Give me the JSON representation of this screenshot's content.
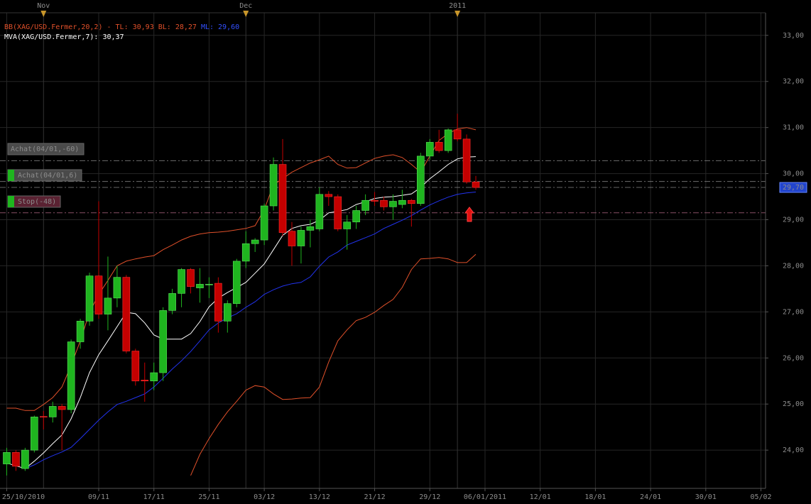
{
  "chart_data": {
    "type": "candlestick",
    "legend": [
      [
        {
          "text": "BB(XAG/USD.Fermer,20,2) - TL: 30,93 BL: 28,27 ",
          "color": "#e0502a"
        },
        {
          "text": "ML: 29,60",
          "color": "#3350ff"
        }
      ],
      [
        {
          "text": "MVA(XAG/USD.Fermer,7): 30,37",
          "color": "#ffffff"
        }
      ]
    ],
    "categories": [
      "25/10/2010",
      null,
      null,
      null,
      null,
      null,
      null,
      null,
      null,
      null,
      "09/11",
      null,
      null,
      null,
      null,
      null,
      "17/11",
      null,
      null,
      null,
      null,
      null,
      "25/11",
      null,
      null,
      null,
      null,
      null,
      "03/12",
      null,
      null,
      null,
      null,
      null,
      "13/12",
      null,
      null,
      null,
      null,
      null,
      "21/12",
      null,
      null,
      null,
      null,
      null,
      "29/12",
      null,
      null,
      null,
      null,
      null,
      "06/01/2011",
      null,
      null,
      null,
      null,
      null,
      "12/01",
      null,
      null,
      null,
      null,
      null,
      "18/01",
      null,
      null,
      null,
      null,
      null,
      "24/01",
      null,
      null,
      null,
      null,
      null,
      "30/01",
      null,
      null,
      null,
      null,
      null,
      "05/02"
    ],
    "top_ticks": [
      {
        "value": 4,
        "label": "Nov"
      },
      {
        "value": 26,
        "label": "Dec"
      },
      {
        "value": 49,
        "label": "2011"
      }
    ],
    "open": [
      23.7,
      23.95,
      23.6,
      24.0,
      24.73,
      24.72,
      24.95,
      24.88,
      26.35,
      26.8,
      27.78,
      26.95,
      27.3,
      27.75,
      26.15,
      25.52,
      25.5,
      25.68,
      27.03,
      27.4,
      27.92,
      27.52,
      27.6,
      27.62,
      26.8,
      27.18,
      28.1,
      28.48,
      28.56,
      29.3,
      30.2,
      28.75,
      28.43,
      28.77,
      28.8,
      29.55,
      29.5,
      28.8,
      28.95,
      29.2,
      29.42,
      29.42,
      29.28,
      29.33,
      29.42,
      29.35,
      30.38,
      30.68,
      30.5,
      30.95,
      30.75,
      29.82,
      null,
      null,
      null,
      null,
      null,
      null,
      null,
      null,
      null,
      null,
      null,
      null,
      null,
      null,
      null,
      null,
      null,
      null,
      null,
      null,
      null,
      null,
      null,
      null,
      null,
      null,
      null,
      null,
      null,
      null,
      null
    ],
    "high": [
      24.05,
      24.0,
      24.05,
      24.75,
      24.85,
      25.05,
      25.0,
      26.4,
      26.85,
      27.85,
      29.4,
      28.2,
      28.0,
      27.8,
      26.2,
      25.9,
      25.9,
      27.1,
      27.5,
      27.95,
      27.95,
      27.95,
      27.75,
      27.75,
      27.25,
      28.15,
      28.75,
      28.6,
      29.35,
      30.35,
      30.75,
      28.95,
      28.85,
      29.0,
      29.7,
      29.62,
      29.55,
      29.1,
      29.3,
      29.55,
      29.6,
      29.5,
      29.55,
      29.65,
      29.45,
      30.45,
      30.75,
      30.95,
      30.98,
      31.3,
      30.85,
      29.95,
      null,
      null,
      null,
      null,
      null,
      null,
      null,
      null,
      null,
      null,
      null,
      null,
      null,
      null,
      null,
      null,
      null,
      null,
      null,
      null,
      null,
      null,
      null,
      null,
      null,
      null,
      null,
      null,
      null,
      null,
      null
    ],
    "low": [
      23.45,
      23.55,
      23.55,
      23.95,
      24.45,
      24.6,
      24.0,
      24.8,
      26.2,
      26.7,
      26.85,
      26.6,
      27.1,
      26.1,
      25.4,
      25.05,
      25.3,
      25.5,
      26.95,
      27.1,
      27.4,
      27.2,
      27.3,
      26.55,
      26.55,
      27.1,
      27.95,
      28.3,
      28.45,
      29.2,
      28.65,
      28.0,
      28.05,
      28.4,
      28.75,
      29.3,
      28.75,
      28.35,
      28.8,
      29.1,
      29.3,
      29.2,
      29.0,
      29.25,
      28.85,
      29.3,
      30.3,
      30.45,
      30.45,
      30.7,
      29.78,
      29.65,
      null,
      null,
      null,
      null,
      null,
      null,
      null,
      null,
      null,
      null,
      null,
      null,
      null,
      null,
      null,
      null,
      null,
      null,
      null,
      null,
      null,
      null,
      null,
      null,
      null,
      null,
      null,
      null,
      null,
      null,
      null
    ],
    "close": [
      23.95,
      23.65,
      24.0,
      24.72,
      24.72,
      24.95,
      24.88,
      26.35,
      26.8,
      27.78,
      26.95,
      27.3,
      27.75,
      26.15,
      25.5,
      25.5,
      25.68,
      27.03,
      27.4,
      27.92,
      27.55,
      27.6,
      27.6,
      26.8,
      27.18,
      28.1,
      28.48,
      28.56,
      29.3,
      30.2,
      28.72,
      28.43,
      28.77,
      28.85,
      29.55,
      29.5,
      28.8,
      28.95,
      29.2,
      29.42,
      29.4,
      29.28,
      29.4,
      29.42,
      29.35,
      30.38,
      30.68,
      30.5,
      30.95,
      30.75,
      29.82,
      29.7,
      null,
      null,
      null,
      null,
      null,
      null,
      null,
      null,
      null,
      null,
      null,
      null,
      null,
      null,
      null,
      null,
      null,
      null,
      null,
      null,
      null,
      null,
      null,
      null,
      null,
      null,
      null,
      null,
      null,
      null,
      null
    ],
    "up_color": "#1fb51f",
    "down_color": "#c40000",
    "indicators": [
      {
        "color": "#e0502a",
        "values": [
          24.91,
          24.91,
          24.86,
          24.86,
          24.99,
          25.14,
          25.37,
          25.84,
          26.37,
          26.99,
          27.38,
          27.68,
          28.0,
          28.1,
          28.15,
          28.19,
          28.22,
          28.35,
          28.45,
          28.56,
          28.64,
          28.69,
          28.72,
          28.73,
          28.75,
          28.78,
          28.81,
          28.87,
          29.22,
          29.76,
          29.89,
          30.03,
          30.13,
          30.23,
          30.3,
          30.38,
          30.2,
          30.12,
          30.13,
          30.23,
          30.33,
          30.38,
          30.41,
          30.35,
          30.2,
          30.03,
          30.38,
          30.72,
          30.87,
          30.97,
          31.0,
          30.95,
          null,
          null,
          null,
          null,
          null,
          null,
          null,
          null,
          null,
          null,
          null,
          null,
          null,
          null,
          null,
          null,
          null,
          null,
          null,
          null,
          null,
          null,
          null,
          null,
          null,
          null,
          null,
          null,
          null,
          null,
          null
        ]
      },
      {
        "color": "#e0502a",
        "values": [
          null,
          null,
          null,
          null,
          null,
          null,
          null,
          null,
          null,
          null,
          null,
          null,
          null,
          null,
          null,
          null,
          null,
          null,
          null,
          null,
          23.45,
          23.91,
          24.25,
          24.56,
          24.83,
          25.06,
          25.3,
          25.4,
          25.37,
          25.22,
          25.1,
          25.11,
          25.13,
          25.14,
          25.37,
          25.91,
          26.37,
          26.61,
          26.81,
          26.88,
          26.99,
          27.14,
          27.27,
          27.53,
          27.92,
          28.15,
          28.16,
          28.18,
          28.15,
          28.07,
          28.07,
          28.25,
          null,
          null,
          null,
          null,
          null,
          null,
          null,
          null,
          null,
          null,
          null,
          null,
          null,
          null,
          null,
          null,
          null,
          null,
          null,
          null,
          null,
          null,
          null,
          null,
          null,
          null,
          null,
          null,
          null,
          null,
          null
        ]
      },
      {
        "color": "#2233ee",
        "values": [
          null,
          null,
          23.6,
          23.68,
          23.79,
          23.88,
          23.96,
          24.06,
          24.25,
          24.45,
          24.65,
          24.83,
          24.99,
          25.06,
          25.14,
          25.22,
          25.37,
          25.56,
          25.76,
          25.94,
          26.14,
          26.37,
          26.61,
          26.76,
          26.87,
          26.96,
          27.1,
          27.22,
          27.38,
          27.48,
          27.56,
          27.61,
          27.64,
          27.76,
          27.99,
          28.19,
          28.3,
          28.45,
          28.53,
          28.61,
          28.69,
          28.81,
          28.9,
          28.99,
          29.09,
          29.21,
          29.32,
          29.41,
          29.49,
          29.55,
          29.58,
          29.6,
          null,
          null,
          null,
          null,
          null,
          null,
          null,
          null,
          null,
          null,
          null,
          null,
          null,
          null,
          null,
          null,
          null,
          null,
          null,
          null,
          null,
          null,
          null,
          null,
          null,
          null,
          null,
          null,
          null,
          null,
          null
        ]
      },
      {
        "color": "#ffffff",
        "values": [
          23.72,
          23.66,
          23.6,
          23.76,
          23.94,
          24.14,
          24.33,
          24.68,
          25.14,
          25.68,
          26.07,
          26.37,
          26.68,
          26.99,
          26.96,
          26.76,
          26.5,
          26.41,
          26.41,
          26.41,
          26.53,
          26.79,
          27.11,
          27.3,
          27.42,
          27.53,
          27.64,
          27.84,
          28.04,
          28.35,
          28.66,
          28.81,
          28.87,
          28.9,
          28.99,
          29.15,
          29.18,
          29.22,
          29.33,
          29.39,
          29.46,
          29.49,
          29.5,
          29.53,
          29.56,
          29.7,
          29.89,
          30.04,
          30.2,
          30.32,
          30.36,
          30.37,
          null,
          null,
          null,
          null,
          null,
          null,
          null,
          null,
          null,
          null,
          null,
          null,
          null,
          null,
          null,
          null,
          null,
          null,
          null,
          null,
          null,
          null,
          null,
          null,
          null,
          null,
          null,
          null,
          null,
          null,
          null
        ]
      }
    ],
    "levels": [
      {
        "label": "Achat(04/01,-60)",
        "value": 30.28,
        "color": "#9a9a9a",
        "box": "#4a4a4a",
        "marker": false
      },
      {
        "label": "Achat(04/01,6)",
        "value": 29.83,
        "color": "#9a9a9a",
        "box": "#4a4a4a",
        "marker": true
      },
      {
        "label": "Stop(-48)",
        "value": 29.15,
        "color": "#c07090",
        "box": "#5a2232",
        "marker": true
      }
    ],
    "last_price": {
      "value": 29.7,
      "label": "29,70"
    },
    "ylim": [
      23.17,
      33.49
    ],
    "yticks": [
      {
        "value": 24,
        "label": "24,00"
      },
      {
        "value": 25,
        "label": "25,00"
      },
      {
        "value": 26,
        "label": "26,00"
      },
      {
        "value": 27,
        "label": "27,00"
      },
      {
        "value": 28,
        "label": "28,00"
      },
      {
        "value": 29,
        "label": "29,00"
      },
      {
        "value": 30,
        "label": "30,00"
      },
      {
        "value": 31,
        "label": "31,00"
      },
      {
        "value": 32,
        "label": "32,00"
      },
      {
        "value": 33,
        "label": "33,00"
      }
    ],
    "grid": true
  }
}
